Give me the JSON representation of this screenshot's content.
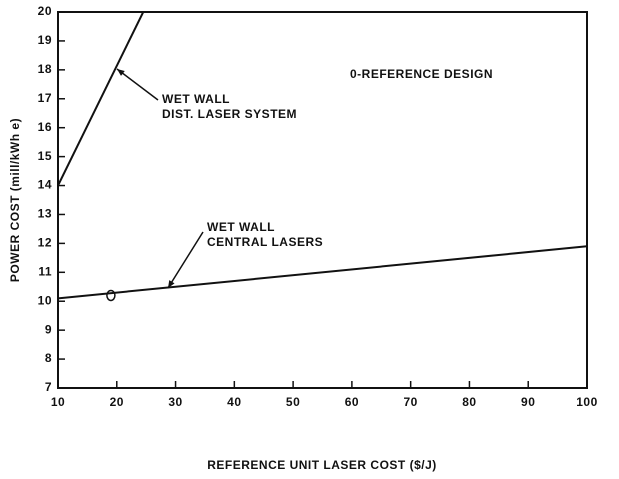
{
  "chart_data": {
    "type": "line",
    "xlabel": "REFERENCE UNIT LASER COST ($/J)",
    "ylabel": "POWER COST (mill/kWh e)",
    "xlim": [
      10,
      100
    ],
    "xticks": [
      10,
      20,
      30,
      40,
      50,
      60,
      70,
      80,
      90,
      100
    ],
    "ylim": [
      7,
      20
    ],
    "yticks": [
      7,
      8,
      9,
      10,
      11,
      12,
      13,
      14,
      15,
      16,
      17,
      18,
      19,
      20
    ],
    "series": [
      {
        "color": "#111111",
        "x": [
          10,
          24.5
        ],
        "values": [
          14,
          20
        ]
      },
      {
        "color": "#111111",
        "x": [
          10,
          100
        ],
        "values": [
          10.1,
          11.9
        ]
      }
    ],
    "reference_point": {
      "x": 19,
      "y": 10.2
    },
    "annotations": [
      {
        "lines": [
          "WET WALL",
          "DIST. LASER SYSTEM"
        ]
      },
      {
        "lines": [
          "WET WALL",
          "CENTRAL LASERS"
        ]
      },
      {
        "lines": [
          "0-REFERENCE DESIGN"
        ]
      }
    ]
  }
}
